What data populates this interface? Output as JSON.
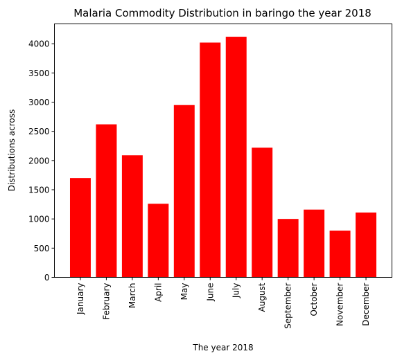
{
  "chart_data": {
    "type": "bar",
    "title": "Malaria Commodity Distribution in baringo the year 2018",
    "xlabel": "The year 2018",
    "ylabel": "Distributions across",
    "categories": [
      "January",
      "February",
      "March",
      "April",
      "May",
      "June",
      "July",
      "August",
      "September",
      "October",
      "November",
      "December"
    ],
    "values": [
      1700,
      2620,
      2090,
      1260,
      2950,
      4020,
      4120,
      2220,
      1000,
      1160,
      800,
      1110
    ],
    "ylim": [
      0,
      4340
    ],
    "yticks": [
      0,
      500,
      1000,
      1500,
      2000,
      2500,
      3000,
      3500,
      4000
    ],
    "bar_color": "#ff0000",
    "grid": false
  }
}
